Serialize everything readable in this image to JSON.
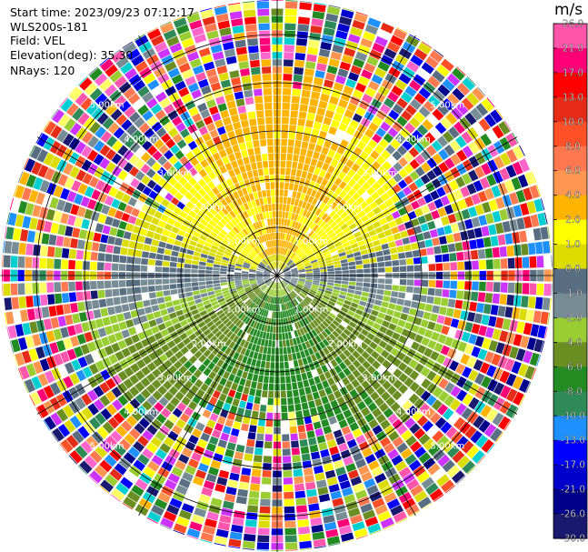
{
  "info": {
    "start_time": "Start time: 2023/09/23 07:12:17",
    "site": "WLS200s-181",
    "field": "Field: VEL",
    "elevation": "Elevation(deg): 35.30",
    "nrays": "NRays: 120"
  },
  "colorbar": {
    "unit": "m/s",
    "ticks": [
      "26.0",
      "21.0",
      "17.0",
      "13.0",
      "10.0",
      "8.0",
      "6.0",
      "4.0",
      "2.0",
      "1.0",
      "0.0",
      "-1.0",
      "-2.0",
      "-4.0",
      "-6.0",
      "-8.0",
      "-10.0",
      "-13.0",
      "-17.0",
      "-21.0",
      "-26.0",
      "-30.0"
    ],
    "colors": [
      "#ff55aa",
      "#ff0077",
      "#ff0000",
      "#e62c16",
      "#ff5028",
      "#ff7850",
      "#ff9650",
      "#ffb400",
      "#ffff00",
      "#dcdc00",
      "#5a6e82",
      "#788c96",
      "#9acd32",
      "#6b8e23",
      "#228b22",
      "#2e8b57",
      "#1e90ff",
      "#0000ff",
      "#0000cd",
      "#00008b",
      "#191970"
    ]
  },
  "chart_data": {
    "type": "polar radial-velocity PPI",
    "field": "VEL",
    "units": "m/s",
    "rings_km": [
      "1.00km",
      "2.00km",
      "3.00km",
      "4.00km",
      "5.00km"
    ],
    "range_max_km": 5.7,
    "pattern": {
      "near_field": "positive velocities (yellow, 2 to 6 m/s) to the north, negative (green, -1 to -4 m/s) to the south, near-zero (grey) along the east-west axis",
      "far_field": "noisy random colors beyond about 3 to 4 km"
    }
  }
}
